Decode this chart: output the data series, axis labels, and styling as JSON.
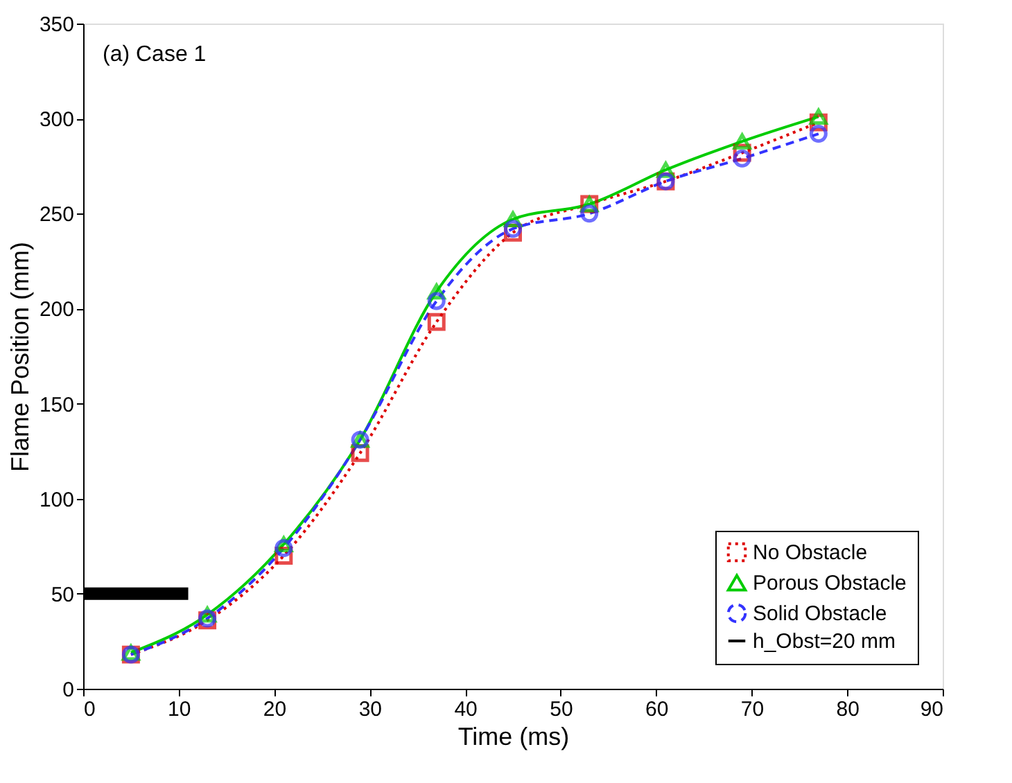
{
  "chart_data": {
    "type": "line",
    "xlabel": "Time (ms)",
    "ylabel": "Flame Position (mm)",
    "annotations": [
      "(a) Case 1"
    ],
    "xlim": [
      0,
      90
    ],
    "xticks": [
      0,
      10,
      20,
      30,
      40,
      50,
      60,
      70,
      80,
      90
    ],
    "ylim": [
      0,
      350
    ],
    "yticks": [
      0,
      50,
      100,
      150,
      200,
      250,
      300,
      350
    ],
    "grid": false,
    "legend": "bottom right",
    "series": [
      {
        "name": "No Obstacle",
        "color": "#dd0000",
        "marker": "square",
        "line_style": "dotted",
        "x": [
          5,
          13,
          21,
          29,
          37,
          45,
          53,
          61,
          69,
          77
        ],
        "values": [
          18,
          36,
          70,
          124,
          193,
          240,
          255,
          267,
          282,
          298
        ]
      },
      {
        "name": "Porous Obstacle",
        "color": "#00cc00",
        "marker": "triangle",
        "line_style": "solid",
        "x": [
          5,
          13,
          21,
          29,
          37,
          45,
          53,
          61,
          69,
          77
        ],
        "values": [
          19,
          39,
          76,
          131,
          209,
          247,
          255,
          273,
          288,
          301
        ]
      },
      {
        "name": "Solid Obstacle",
        "color": "#3333ff",
        "marker": "circle",
        "line_style": "dashed",
        "x": [
          5,
          13,
          21,
          29,
          37,
          45,
          53,
          61,
          69,
          77
        ],
        "values": [
          18,
          37,
          74,
          131,
          204,
          242,
          250,
          267,
          279,
          292
        ]
      },
      {
        "name": "h_Obst=20 mm",
        "color": "#000000",
        "marker": "none",
        "line_style": "solid",
        "x": [
          0,
          11
        ],
        "values": [
          50,
          50
        ]
      }
    ]
  }
}
